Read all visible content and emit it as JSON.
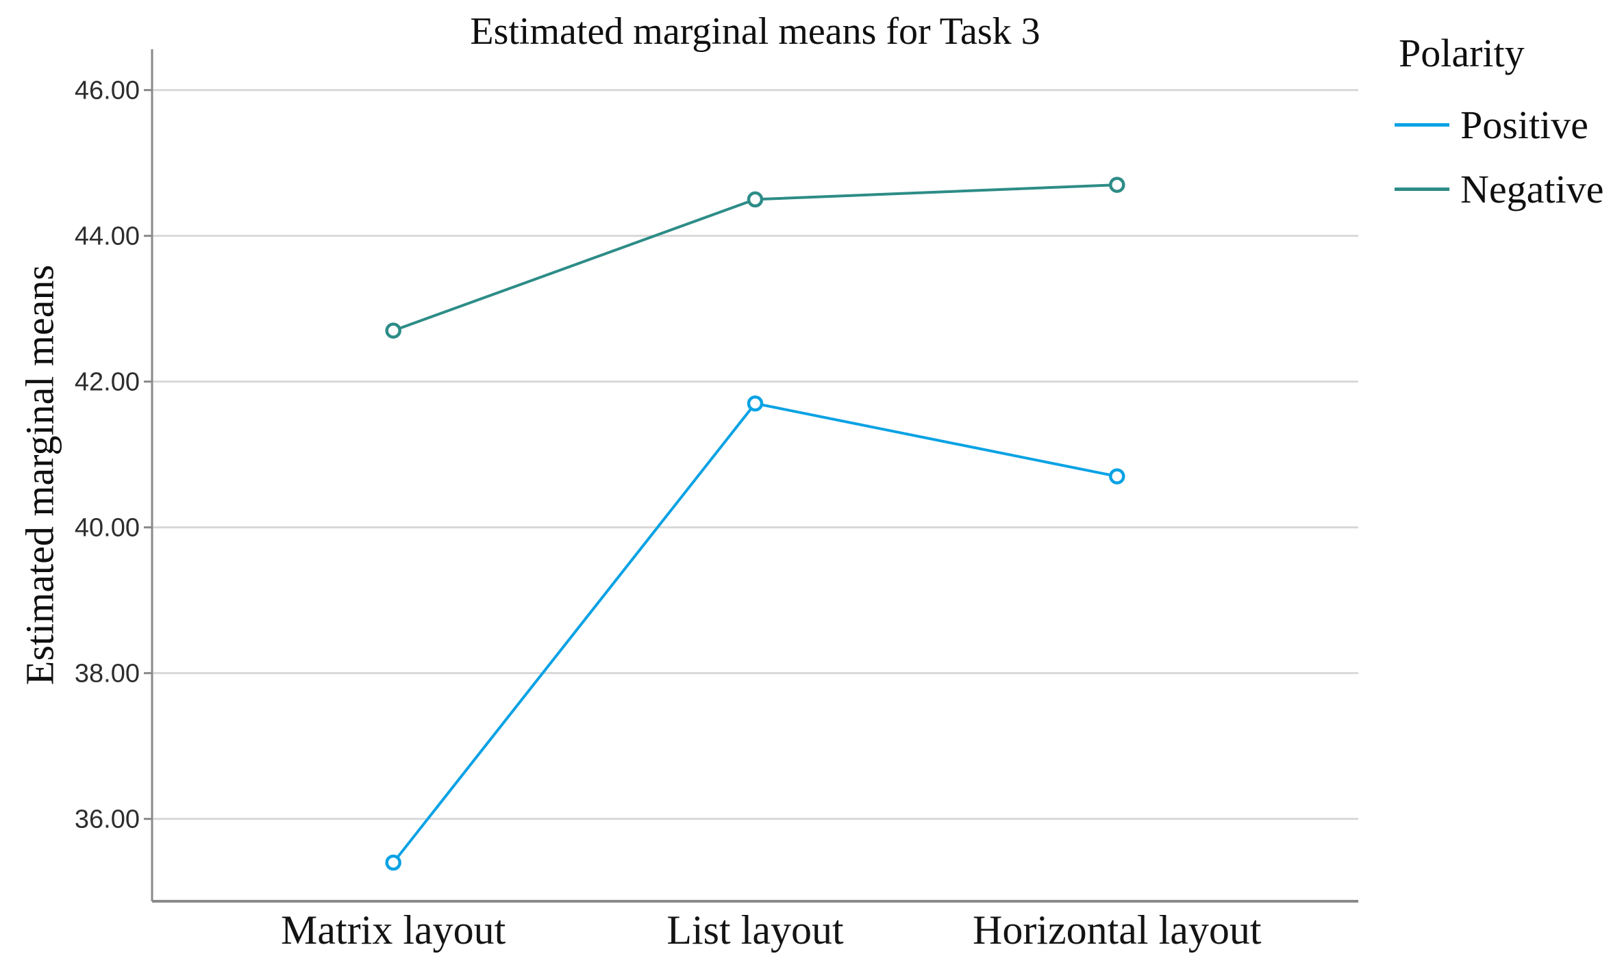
{
  "page": {
    "background": "#ffffff"
  },
  "chart_data": {
    "type": "line",
    "title": "Estimated marginal means for Task 3",
    "ylabel": "Estimated marginal means",
    "xlabel": "",
    "categories": [
      "Matrix layout",
      "List layout",
      "Horizontal layout"
    ],
    "series": [
      {
        "name": "Positive",
        "color": "#0aa2e4",
        "values": [
          35.4,
          41.7,
          40.7
        ]
      },
      {
        "name": "Negative",
        "color": "#2d8c87",
        "values": [
          42.7,
          44.5,
          44.7
        ]
      }
    ],
    "legend": {
      "title": "Polarity",
      "position": "top-right"
    },
    "ylim": [
      34.87,
      46.56
    ],
    "yticks": [
      36,
      38,
      40,
      42,
      44,
      46
    ],
    "ytick_labels": [
      "36.00",
      "38.00",
      "40.00",
      "42.00",
      "44.00",
      "46.00"
    ],
    "grid": "horizontal",
    "marker": "open-circle",
    "axis_color": "#898989",
    "grid_color": "#d8d8d8"
  }
}
